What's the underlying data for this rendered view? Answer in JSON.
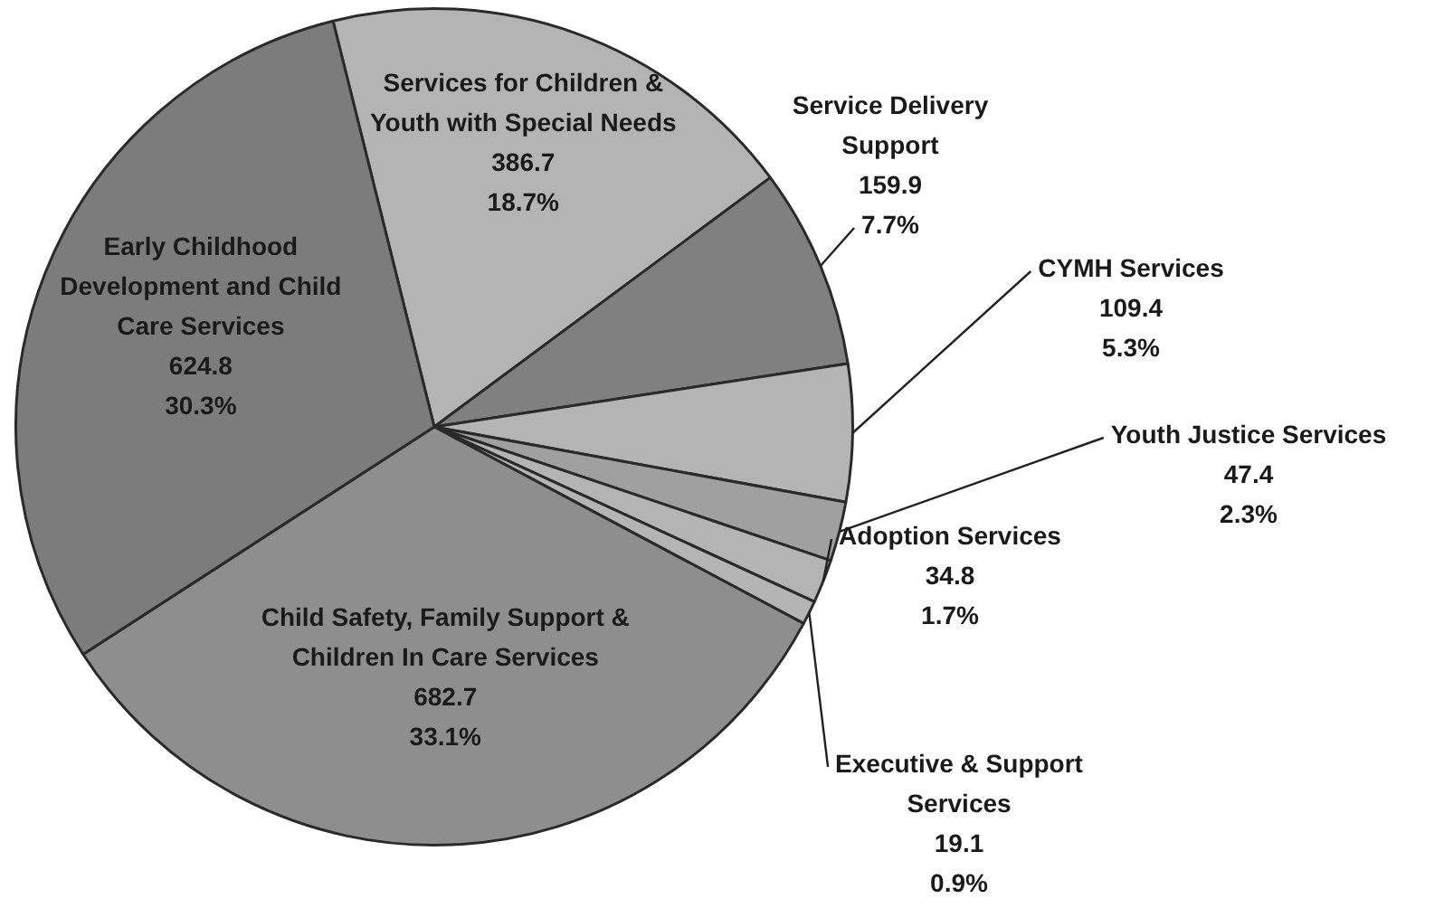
{
  "chart_data": {
    "type": "pie",
    "categories": [
      "Services for Children & Youth with Special Needs",
      "Service Delivery Support",
      "CYMH Services",
      "Youth Justice Services",
      "Adoption Services",
      "Executive & Support Services",
      "Child Safety, Family Support & Children In Care Services",
      "Early Childhood Development and Child Care Services"
    ],
    "values": [
      386.7,
      159.9,
      109.4,
      47.4,
      34.8,
      19.1,
      682.7,
      624.8
    ],
    "value_labels": [
      "386.7\n18.7%",
      "159.9\n7.7%",
      "109.4\n5.3%",
      "47.4\n2.3%",
      "34.8\n1.7%",
      "19.1\n0.9%",
      "682.7\n33.1%",
      "624.8\n30.3%"
    ],
    "colors": [
      "#b4b4b4",
      "#808080",
      "#b4b4b4",
      "#a0a0a0",
      "#b4b4b4",
      "#b4b4b4",
      "#8e8e8e",
      "#7c7c7c"
    ],
    "legend": false
  }
}
